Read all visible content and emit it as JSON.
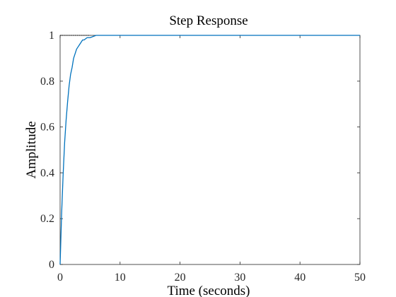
{
  "chart_data": {
    "type": "line",
    "title": "Step Response",
    "xlabel": "Time (seconds)",
    "ylabel": "Amplitude",
    "xlim": [
      0,
      50
    ],
    "ylim": [
      0,
      1
    ],
    "x_ticks": [
      "0",
      "10",
      "20",
      "30",
      "40",
      "50"
    ],
    "y_ticks": [
      "0",
      "0.2",
      "0.4",
      "0.6",
      "0.8",
      "1"
    ],
    "grid": false,
    "legend": "none",
    "series": [
      {
        "color": "#0072BD",
        "x": [
          0,
          0.25,
          0.5,
          0.75,
          1,
          1.25,
          1.5,
          1.75,
          2,
          2.25,
          2.5,
          2.75,
          3,
          3.25,
          3.5,
          3.75,
          4,
          4.5,
          5,
          6,
          8,
          10,
          15,
          20,
          25,
          30,
          35,
          40,
          45,
          50
        ],
        "y": [
          0,
          0.22,
          0.39,
          0.53,
          0.63,
          0.71,
          0.78,
          0.83,
          0.86,
          0.9,
          0.92,
          0.94,
          0.95,
          0.96,
          0.97,
          0.98,
          0.98,
          0.99,
          0.99,
          1,
          1,
          1,
          1,
          1,
          1,
          1,
          1,
          1,
          1,
          1
        ]
      }
    ],
    "final_value": 1,
    "final_value_color": "#000000"
  }
}
